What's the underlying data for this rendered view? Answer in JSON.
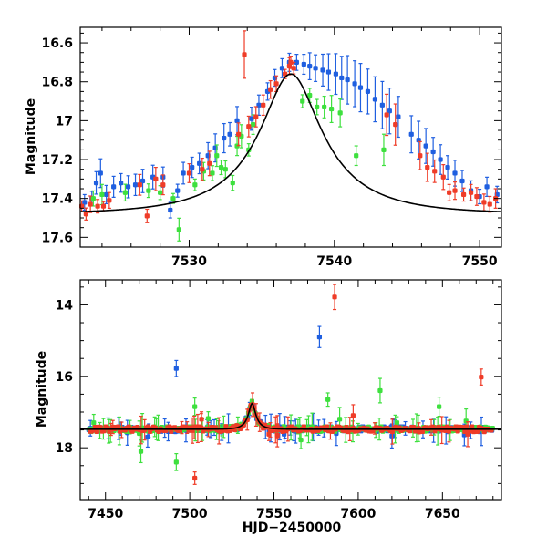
{
  "chart_data": [
    {
      "type": "scatter",
      "title": "",
      "xlabel": "",
      "ylabel": "Magnitude",
      "xlim": [
        7522.5,
        7551.5
      ],
      "ylim": [
        17.65,
        16.52
      ],
      "y_inverted": true,
      "xticks": [
        7530,
        7540,
        7550
      ],
      "yticks": [
        16.6,
        16.8,
        17,
        17.2,
        17.4,
        17.6
      ],
      "ytick_labels": [
        "16.6",
        "16.8",
        "17",
        "17.2",
        "17.4",
        "17.6"
      ],
      "model_curve": {
        "type": "microlensing-model",
        "t0": 7537.0,
        "peak_mag": 16.76,
        "baseline_mag": 17.48
      },
      "series": [
        {
          "color": "#1f5fe0",
          "points": [
            [
              7522.8,
              17.42
            ],
            [
              7523.3,
              17.4
            ],
            [
              7523.6,
              17.32
            ],
            [
              7523.9,
              17.27
            ],
            [
              7524.3,
              17.38
            ],
            [
              7524.8,
              17.34
            ],
            [
              7525.3,
              17.32
            ],
            [
              7525.8,
              17.34
            ],
            [
              7526.3,
              17.33
            ],
            [
              7526.8,
              17.31
            ],
            [
              7527.5,
              17.29
            ],
            [
              7528.2,
              17.29
            ],
            [
              7528.7,
              17.46
            ],
            [
              7529.2,
              17.36
            ],
            [
              7529.6,
              17.27
            ],
            [
              7530.2,
              17.24
            ],
            [
              7530.7,
              17.22
            ],
            [
              7531.3,
              17.18
            ],
            [
              7531.8,
              17.14
            ],
            [
              7532.4,
              17.09
            ],
            [
              7532.8,
              17.07
            ],
            [
              7533.3,
              17.0
            ],
            [
              7534.3,
              16.99
            ],
            [
              7534.8,
              16.92
            ],
            [
              7535.4,
              16.85
            ],
            [
              7535.9,
              16.78
            ],
            [
              7536.4,
              16.73
            ],
            [
              7536.9,
              16.7
            ],
            [
              7537.4,
              16.7
            ],
            [
              7537.9,
              16.71
            ],
            [
              7538.3,
              16.72
            ],
            [
              7538.7,
              16.73
            ],
            [
              7539.2,
              16.74
            ],
            [
              7539.6,
              16.75
            ],
            [
              7540.1,
              16.76
            ],
            [
              7540.5,
              16.78
            ],
            [
              7540.9,
              16.79
            ],
            [
              7541.4,
              16.81
            ],
            [
              7541.8,
              16.83
            ],
            [
              7542.3,
              16.85
            ],
            [
              7542.8,
              16.89
            ],
            [
              7543.3,
              16.92
            ],
            [
              7543.8,
              16.95
            ],
            [
              7544.4,
              16.98
            ],
            [
              7545.3,
              17.07
            ],
            [
              7545.8,
              17.1
            ],
            [
              7546.3,
              17.13
            ],
            [
              7546.8,
              17.16
            ],
            [
              7547.3,
              17.2
            ],
            [
              7547.8,
              17.24
            ],
            [
              7548.3,
              17.27
            ],
            [
              7548.8,
              17.31
            ],
            [
              7549.4,
              17.36
            ],
            [
              7550.0,
              17.39
            ],
            [
              7550.5,
              17.34
            ],
            [
              7551.2,
              17.38
            ]
          ]
        },
        {
          "color": "#3ee03e",
          "points": [
            [
              7523.4,
              17.4
            ],
            [
              7524.0,
              17.38
            ],
            [
              7525.6,
              17.37
            ],
            [
              7527.2,
              17.36
            ],
            [
              7528.0,
              17.37
            ],
            [
              7528.9,
              17.4
            ],
            [
              7529.3,
              17.56
            ],
            [
              7530.4,
              17.33
            ],
            [
              7531.0,
              17.26
            ],
            [
              7531.6,
              17.27
            ],
            [
              7531.9,
              17.18
            ],
            [
              7532.2,
              17.24
            ],
            [
              7532.5,
              17.25
            ],
            [
              7533.0,
              17.32
            ],
            [
              7533.3,
              17.13
            ],
            [
              7533.6,
              17.08
            ],
            [
              7534.1,
              17.15
            ],
            [
              7534.4,
              17.02
            ],
            [
              7537.8,
              16.9
            ],
            [
              7538.3,
              16.87
            ],
            [
              7538.8,
              16.93
            ],
            [
              7539.3,
              16.93
            ],
            [
              7539.8,
              16.94
            ],
            [
              7540.4,
              16.96
            ],
            [
              7541.5,
              17.18
            ],
            [
              7543.4,
              17.15
            ]
          ]
        },
        {
          "color": "#ef3c28",
          "points": [
            [
              7522.6,
              17.44
            ],
            [
              7522.9,
              17.48
            ],
            [
              7523.2,
              17.43
            ],
            [
              7523.7,
              17.44
            ],
            [
              7524.1,
              17.44
            ],
            [
              7524.5,
              17.41
            ],
            [
              7526.6,
              17.33
            ],
            [
              7527.1,
              17.49
            ],
            [
              7527.7,
              17.3
            ],
            [
              7528.2,
              17.33
            ],
            [
              7530.0,
              17.27
            ],
            [
              7530.9,
              17.25
            ],
            [
              7531.4,
              17.22
            ],
            [
              7533.4,
              17.07
            ],
            [
              7533.8,
              16.66
            ],
            [
              7534.1,
              17.03
            ],
            [
              7534.6,
              16.98
            ],
            [
              7535.1,
              16.92
            ],
            [
              7535.6,
              16.84
            ],
            [
              7536.0,
              16.81
            ],
            [
              7536.6,
              16.76
            ],
            [
              7536.9,
              16.72
            ],
            [
              7537.0,
              16.7
            ],
            [
              7537.2,
              16.73
            ],
            [
              7543.6,
              16.97
            ],
            [
              7544.2,
              17.02
            ],
            [
              7545.9,
              17.18
            ],
            [
              7546.4,
              17.24
            ],
            [
              7546.9,
              17.26
            ],
            [
              7547.5,
              17.29
            ],
            [
              7547.9,
              17.37
            ],
            [
              7548.3,
              17.36
            ],
            [
              7548.9,
              17.38
            ],
            [
              7549.4,
              17.37
            ],
            [
              7549.8,
              17.39
            ],
            [
              7550.3,
              17.42
            ],
            [
              7550.7,
              17.43
            ],
            [
              7551.1,
              17.4
            ]
          ]
        }
      ]
    },
    {
      "type": "scatter",
      "title": "",
      "xlabel": "HJD−2450000",
      "ylabel": "Magnitude",
      "xlim": [
        7435,
        7685
      ],
      "ylim": [
        19.45,
        13.3
      ],
      "y_inverted": true,
      "xticks": [
        7450,
        7500,
        7550,
        7600,
        7650
      ],
      "yticks": [
        14,
        16,
        18
      ],
      "ytick_labels": [
        "14",
        "16",
        "18"
      ],
      "model_curve": {
        "type": "microlensing-model",
        "t0": 7537.0,
        "peak_mag": 16.76,
        "baseline_mag": 17.48
      },
      "baseline_range": [
        7440,
        7680
      ],
      "series": [
        {
          "color": "#1f5fe0",
          "outliers": [
            [
              7492,
              15.78
            ],
            [
              7577,
              14.9
            ],
            [
              7463,
              17.58
            ],
            [
              7475,
              17.7
            ],
            [
              7519,
              17.56
            ],
            [
              7556,
              17.62
            ],
            [
              7587,
              17.6
            ],
            [
              7620,
              17.67
            ],
            [
              7663,
              17.64
            ]
          ]
        },
        {
          "color": "#3ee03e",
          "outliers": [
            [
              7443,
              17.3
            ],
            [
              7470,
              17.6
            ],
            [
              7471,
              18.1
            ],
            [
              7492,
              18.4
            ],
            [
              7503,
              16.85
            ],
            [
              7511,
              17.18
            ],
            [
              7566,
              17.78
            ],
            [
              7582,
              16.65
            ],
            [
              7589,
              17.2
            ],
            [
              7613,
              16.4
            ],
            [
              7623,
              17.3
            ],
            [
              7648,
              16.85
            ],
            [
              7664,
              17.25
            ]
          ]
        },
        {
          "color": "#ef3c28",
          "outliers": [
            [
              7503,
              18.85
            ],
            [
              7507,
              17.2
            ],
            [
              7547,
              17.62
            ],
            [
              7552,
              17.65
            ],
            [
              7586,
              13.78
            ],
            [
              7597,
              17.1
            ],
            [
              7665,
              17.62
            ],
            [
              7673,
              16.02
            ]
          ]
        }
      ]
    }
  ]
}
